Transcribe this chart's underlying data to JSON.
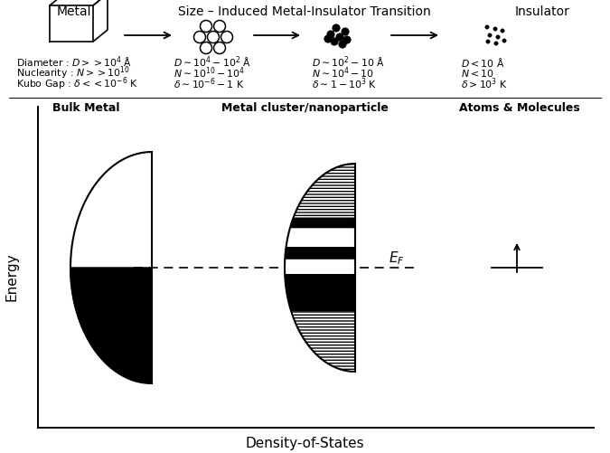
{
  "title_metal": "Metal",
  "title_transition": "Size – Induced Metal-Insulator Transition",
  "title_insulator": "Insulator",
  "label_bulk": "Bulk Metal",
  "label_cluster": "Metal cluster/nanoparticle",
  "label_atoms": "Atoms & Molecules",
  "xlabel": "Density-of-States",
  "ylabel": "Energy",
  "ef_label": "$E_F$",
  "row1_texts": [
    "Diameter : $D >> 10^4$ Å",
    "$D \\sim 10^4 - 10^2$ Å",
    "$D \\sim 10^2 - 10$ Å",
    "$D < 10$ Å"
  ],
  "row2_texts": [
    "Nuclearity : $N >> 10^{10}$",
    "$N \\sim 10^{10} - 10^4$",
    "$N \\sim 10^4 - 10$",
    "$N < 10$"
  ],
  "row3_texts": [
    "Kubo Gap : $\\delta << 10^{-6}$ K",
    "$\\delta \\sim 10^{-6} - 1$ K",
    "$\\delta \\sim 1 - 10^3$ K",
    "$\\delta > 10^3$ K"
  ],
  "bg_color": "#ffffff",
  "text_color": "#000000",
  "fig_width": 6.75,
  "fig_height": 5.01,
  "dpi": 100
}
